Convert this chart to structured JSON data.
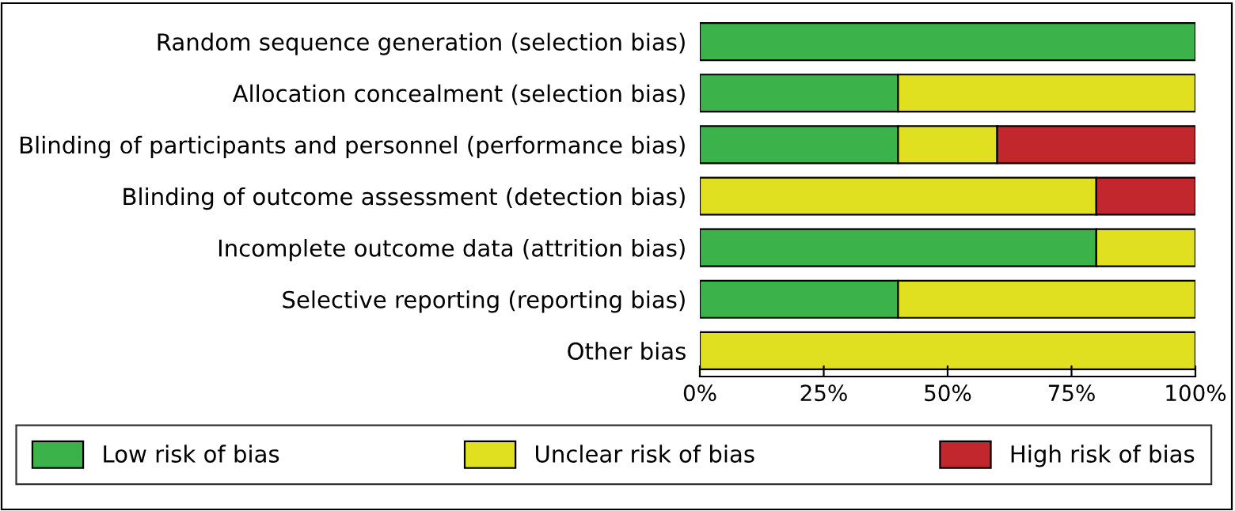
{
  "chart_data": {
    "type": "bar",
    "orientation": "horizontal",
    "stacked": true,
    "categories": [
      "Random sequence generation (selection bias)",
      "Allocation concealment (selection bias)",
      "Blinding of participants and personnel (performance bias)",
      "Blinding of outcome assessment (detection bias)",
      "Incomplete outcome data (attrition bias)",
      "Selective reporting (reporting bias)",
      "Other bias"
    ],
    "series": [
      {
        "name": "Low risk of bias",
        "color": "#3cb34a",
        "values": [
          100,
          40,
          40,
          0,
          80,
          40,
          0
        ]
      },
      {
        "name": "Unclear risk of bias",
        "color": "#e1e020",
        "values": [
          0,
          60,
          20,
          80,
          20,
          60,
          100
        ]
      },
      {
        "name": "High risk of bias",
        "color": "#c1272d",
        "values": [
          0,
          0,
          40,
          20,
          0,
          0,
          0
        ]
      }
    ],
    "xlim": [
      0,
      100
    ],
    "xticks": [
      {
        "value": 0,
        "label": "0%"
      },
      {
        "value": 25,
        "label": "25%"
      },
      {
        "value": 50,
        "label": "50%"
      },
      {
        "value": 75,
        "label": "75%"
      },
      {
        "value": 100,
        "label": "100%"
      }
    ],
    "grid": false,
    "legend": "bottom"
  }
}
